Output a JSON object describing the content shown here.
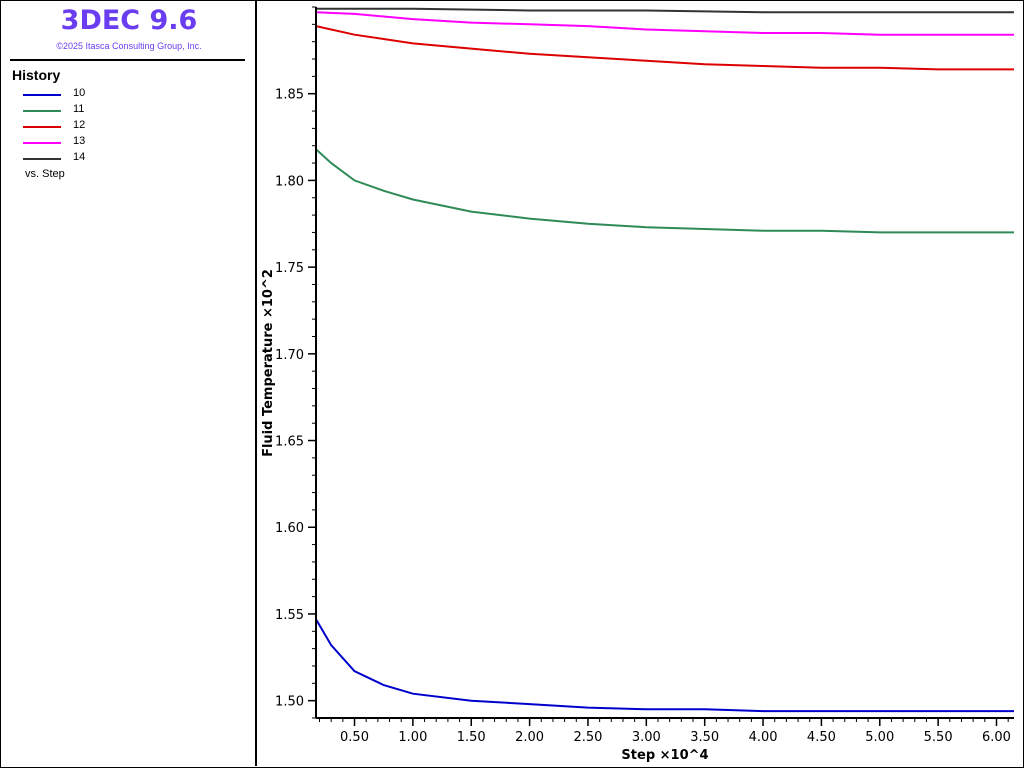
{
  "header": {
    "app_title": "3DEC 9.6",
    "copyright": "©2025 Itasca Consulting Group, Inc."
  },
  "legend": {
    "title": "History",
    "vs_label": "vs. Step"
  },
  "colors": {
    "title": "#6a3df0",
    "axis": "#000000"
  },
  "chart_data": {
    "type": "line",
    "xlabel": "Step ×10^4",
    "ylabel": "Fluid Temperature ×10^2",
    "xlim": [
      0.17,
      6.15
    ],
    "ylim": [
      1.49,
      1.9
    ],
    "xticks": [
      0.5,
      1.0,
      1.5,
      2.0,
      2.5,
      3.0,
      3.5,
      4.0,
      4.5,
      5.0,
      5.5,
      6.0
    ],
    "xtick_labels": [
      "0.50",
      "1.00",
      "1.50",
      "2.00",
      "2.50",
      "3.00",
      "3.50",
      "4.00",
      "4.50",
      "5.00",
      "5.50",
      "6.00"
    ],
    "yticks": [
      1.5,
      1.55,
      1.6,
      1.65,
      1.7,
      1.75,
      1.8,
      1.85
    ],
    "ytick_labels": [
      "1.50",
      "1.55",
      "1.60",
      "1.65",
      "1.70",
      "1.75",
      "1.80",
      "1.85"
    ],
    "grid": false,
    "legend_position": "left panel",
    "series": [
      {
        "name": "10",
        "color": "#0000cc",
        "x": [
          0.17,
          0.3,
          0.5,
          0.75,
          1.0,
          1.5,
          2.0,
          2.5,
          3.0,
          3.5,
          4.0,
          4.5,
          5.0,
          5.5,
          6.0,
          6.15
        ],
        "y": [
          1.547,
          1.532,
          1.517,
          1.509,
          1.504,
          1.5,
          1.498,
          1.496,
          1.495,
          1.495,
          1.494,
          1.494,
          1.494,
          1.494,
          1.494,
          1.494
        ]
      },
      {
        "name": "11",
        "color": "#2e8b57",
        "x": [
          0.17,
          0.3,
          0.5,
          0.75,
          1.0,
          1.5,
          2.0,
          2.5,
          3.0,
          3.5,
          4.0,
          4.5,
          5.0,
          5.5,
          6.0,
          6.15
        ],
        "y": [
          1.818,
          1.81,
          1.8,
          1.794,
          1.789,
          1.782,
          1.778,
          1.775,
          1.773,
          1.772,
          1.771,
          1.771,
          1.77,
          1.77,
          1.77,
          1.77
        ]
      },
      {
        "name": "12",
        "color": "#dd0000",
        "x": [
          0.17,
          0.5,
          1.0,
          1.5,
          2.0,
          2.5,
          3.0,
          3.5,
          4.0,
          4.5,
          5.0,
          5.5,
          6.0,
          6.15
        ],
        "y": [
          1.889,
          1.884,
          1.879,
          1.876,
          1.873,
          1.871,
          1.869,
          1.867,
          1.866,
          1.865,
          1.865,
          1.864,
          1.864,
          1.864
        ]
      },
      {
        "name": "13",
        "color": "#ff00ff",
        "x": [
          0.17,
          0.5,
          1.0,
          1.5,
          2.0,
          2.5,
          3.0,
          3.5,
          4.0,
          4.5,
          5.0,
          5.5,
          6.0,
          6.15
        ],
        "y": [
          1.897,
          1.896,
          1.893,
          1.891,
          1.89,
          1.889,
          1.887,
          1.886,
          1.885,
          1.885,
          1.884,
          1.884,
          1.884,
          1.884
        ]
      },
      {
        "name": "14",
        "color": "#333333",
        "x": [
          0.17,
          1.0,
          2.0,
          3.0,
          4.0,
          5.0,
          6.0,
          6.15
        ],
        "y": [
          1.899,
          1.899,
          1.898,
          1.898,
          1.897,
          1.897,
          1.897,
          1.897
        ]
      }
    ]
  }
}
